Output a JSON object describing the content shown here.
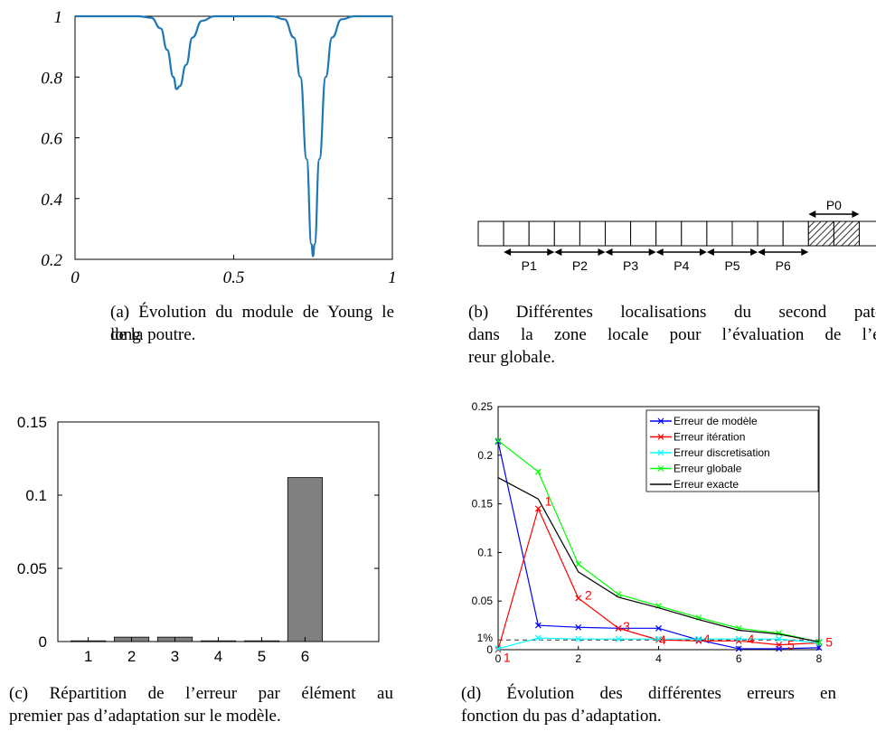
{
  "chart_data": [
    {
      "id": "a",
      "type": "line",
      "x_ticks": [
        "0",
        "0.5",
        "1"
      ],
      "y_ticks": [
        "0.2",
        "0.4",
        "0.6",
        "0.8",
        "1"
      ],
      "xlim": [
        0,
        1
      ],
      "ylim": [
        0.2,
        1
      ],
      "series": [
        {
          "color": "#1f77b4",
          "x": [
            0,
            0.2,
            0.24,
            0.27,
            0.29,
            0.31,
            0.32,
            0.33,
            0.35,
            0.37,
            0.4,
            0.44,
            0.62,
            0.66,
            0.69,
            0.71,
            0.73,
            0.745,
            0.75,
            0.755,
            0.77,
            0.79,
            0.81,
            0.84,
            0.88,
            1
          ],
          "y": [
            1,
            1,
            0.995,
            0.96,
            0.89,
            0.8,
            0.76,
            0.77,
            0.84,
            0.93,
            0.985,
            1,
            1,
            0.99,
            0.93,
            0.8,
            0.53,
            0.25,
            0.21,
            0.25,
            0.53,
            0.8,
            0.93,
            0.99,
            1,
            1
          ]
        }
      ]
    },
    {
      "id": "b",
      "type": "diagram",
      "patch_labels": [
        "P1",
        "P2",
        "P3",
        "P4",
        "P5",
        "P6"
      ],
      "p0_label": "P0"
    },
    {
      "id": "c",
      "type": "bar",
      "categories": [
        "1",
        "2",
        "3",
        "4",
        "5",
        "6"
      ],
      "values": [
        0.0005,
        0.003,
        0.003,
        0.0005,
        0.0005,
        0.112
      ],
      "y_ticks": [
        "0",
        "0.05",
        "0.1",
        "0.15"
      ],
      "ylim": [
        0,
        0.15
      ],
      "xlim": [
        0.3,
        7.7
      ],
      "bar_color": "#808080"
    },
    {
      "id": "d",
      "type": "line",
      "x_ticks": [
        "0",
        "2",
        "4",
        "6",
        "8"
      ],
      "y_ticks": [
        "0",
        "0.05",
        "0.1",
        "0.15",
        "0.2",
        "0.25"
      ],
      "xlim": [
        0,
        8
      ],
      "ylim": [
        0,
        0.25
      ],
      "reference_label": "1%",
      "reference_value": 0.01,
      "series": [
        {
          "name": "Erreur de modèle",
          "color": "#0000ff",
          "marker": "x",
          "x": [
            0,
            1,
            2,
            3,
            4,
            5,
            6,
            7,
            8
          ],
          "y": [
            0.214,
            0.025,
            0.023,
            0.022,
            0.022,
            0.01,
            0.001,
            0.001,
            0.002
          ]
        },
        {
          "name": "Erreur itération",
          "color": "#ff0000",
          "marker": "x",
          "x": [
            0,
            1,
            2,
            3,
            4,
            5,
            6,
            7,
            8
          ],
          "y": [
            0.0,
            0.145,
            0.053,
            0.022,
            0.01,
            0.009,
            0.009,
            0.005,
            0.007
          ]
        },
        {
          "name": "Erreur discretisation",
          "color": "#00ffff",
          "marker": "x",
          "x": [
            0,
            1,
            2,
            3,
            4,
            5,
            6,
            7,
            8
          ],
          "y": [
            0.001,
            0.012,
            0.011,
            0.011,
            0.011,
            0.011,
            0.011,
            0.011,
            0.007
          ]
        },
        {
          "name": "Erreur globale",
          "color": "#00ff00",
          "marker": "x",
          "x": [
            0,
            1,
            2,
            3,
            4,
            5,
            6,
            7,
            8
          ],
          "y": [
            0.215,
            0.183,
            0.088,
            0.057,
            0.045,
            0.033,
            0.022,
            0.017,
            0.008
          ]
        },
        {
          "name": "Erreur exacte",
          "color": "#000000",
          "marker": "none",
          "x": [
            0,
            1,
            2,
            3,
            4,
            5,
            6,
            7,
            8
          ],
          "y": [
            0.177,
            0.155,
            0.08,
            0.054,
            0.043,
            0.031,
            0.02,
            0.016,
            0.008
          ]
        }
      ],
      "annotations": [
        {
          "text": "1",
          "x": 0.22,
          "y": -0.008
        },
        {
          "text": "1",
          "x": 1.25,
          "y": 0.153
        },
        {
          "text": "2",
          "x": 2.25,
          "y": 0.056
        },
        {
          "text": "3",
          "x": 3.2,
          "y": 0.024
        },
        {
          "text": "4",
          "x": 4.1,
          "y": 0.01
        },
        {
          "text": "4",
          "x": 5.2,
          "y": 0.011
        },
        {
          "text": "4",
          "x": 6.3,
          "y": 0.011
        },
        {
          "text": "5",
          "x": 7.3,
          "y": 0.005
        },
        {
          "text": "5",
          "x": 8.25,
          "y": 0.008
        }
      ]
    }
  ],
  "captions": {
    "a_line1": "(a) Évolution du module de Young le long",
    "a_line2": "de la poutre.",
    "b_line1": "(b) Différentes localisations du second patch",
    "b_line2": "dans la zone locale pour l’évaluation de l’er-",
    "b_line3": "reur globale.",
    "c_line1": "(c) Répartition de l’erreur par élément au",
    "c_line2": "premier pas d’adaptation sur le modèle.",
    "d_line1": "(d) Évolution des différentes erreurs en",
    "d_line2": "fonction du pas d’adaptation."
  }
}
